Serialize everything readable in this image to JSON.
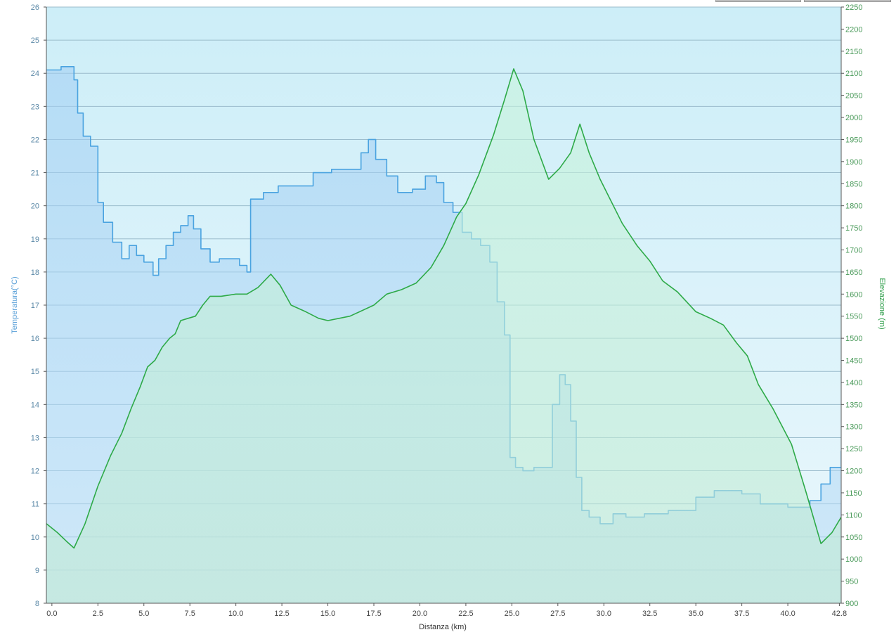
{
  "chart_data": {
    "type": "area",
    "title": "",
    "xlabel": "Distanza  (km)",
    "ylabel_left": "Temperatura(°C)",
    "ylabel_right": "Elevazione (m)",
    "xlim": [
      -0.3,
      42.9
    ],
    "ylim_left": [
      8,
      26
    ],
    "ylim_right": [
      900,
      2250
    ],
    "x_ticks": [
      "0.0",
      "2.5",
      "5.0",
      "7.5",
      "10.0",
      "12.5",
      "15.0",
      "17.5",
      "20.0",
      "22.5",
      "25.0",
      "27.5",
      "30.0",
      "32.5",
      "35.0",
      "37.5",
      "40.0",
      "42.8"
    ],
    "x_tick_values": [
      0,
      2.5,
      5,
      7.5,
      10,
      12.5,
      15,
      17.5,
      20,
      22.5,
      25,
      27.5,
      30,
      32.5,
      35,
      37.5,
      40,
      42.8
    ],
    "y_left_ticks": [
      "8",
      "9",
      "10",
      "11",
      "12",
      "13",
      "14",
      "15",
      "16",
      "17",
      "18",
      "19",
      "20",
      "21",
      "22",
      "23",
      "24",
      "25",
      "26"
    ],
    "y_right_ticks": [
      "900",
      "950",
      "1000",
      "1050",
      "1100",
      "1150",
      "1200",
      "1250",
      "1300",
      "1350",
      "1400",
      "1450",
      "1500",
      "1550",
      "1600",
      "1650",
      "1700",
      "1750",
      "1800",
      "1850",
      "1900",
      "1950",
      "2000",
      "2050",
      "2100",
      "2150",
      "2200",
      "2250"
    ],
    "grid": true,
    "colors": {
      "temperature": "#4aa3e0",
      "elevation": "#2eaa48",
      "grid": "#9bbccc",
      "bg_top": "#cdeef8",
      "bg_bottom": "#eaf7fc"
    },
    "series": [
      {
        "name": "Temperatura(°C)",
        "axis": "left",
        "style": "step",
        "x": [
          -0.3,
          0.5,
          1.2,
          1.4,
          1.7,
          2.1,
          2.5,
          2.8,
          3.3,
          3.8,
          4.2,
          4.6,
          5.0,
          5.5,
          5.8,
          6.2,
          6.6,
          7.0,
          7.4,
          7.7,
          8.1,
          8.6,
          9.1,
          9.6,
          10.2,
          10.6,
          10.8,
          11.5,
          12.3,
          13.2,
          14.2,
          15.2,
          16.2,
          16.8,
          17.2,
          17.6,
          18.2,
          18.8,
          19.6,
          20.3,
          20.9,
          21.3,
          21.8,
          22.3,
          22.8,
          23.3,
          23.8,
          24.2,
          24.6,
          24.9,
          25.2,
          25.6,
          26.2,
          27.2,
          27.6,
          27.9,
          28.2,
          28.5,
          28.8,
          29.2,
          29.8,
          30.5,
          31.2,
          32.2,
          33.5,
          35.0,
          36.0,
          37.5,
          38.5,
          40.0,
          41.2,
          41.8,
          42.3,
          42.9
        ],
        "y": [
          24.1,
          24.2,
          23.8,
          22.8,
          22.1,
          21.8,
          20.1,
          19.5,
          18.9,
          18.4,
          18.8,
          18.5,
          18.3,
          17.9,
          18.4,
          18.8,
          19.2,
          19.4,
          19.7,
          19.3,
          18.7,
          18.3,
          18.4,
          18.4,
          18.2,
          18.0,
          20.2,
          20.4,
          20.6,
          20.6,
          21.0,
          21.1,
          21.1,
          21.6,
          22.0,
          21.4,
          20.9,
          20.4,
          20.5,
          20.9,
          20.7,
          20.1,
          19.8,
          19.2,
          19.0,
          18.8,
          18.3,
          17.1,
          16.1,
          12.4,
          12.1,
          12.0,
          12.1,
          14.0,
          14.9,
          14.6,
          13.5,
          11.8,
          10.8,
          10.6,
          10.4,
          10.7,
          10.6,
          10.7,
          10.8,
          11.2,
          11.4,
          11.3,
          11.0,
          10.9,
          11.1,
          11.6,
          12.1,
          12.6
        ]
      },
      {
        "name": "Elevazione (m)",
        "axis": "right",
        "style": "line",
        "x": [
          -0.3,
          0.3,
          0.8,
          1.2,
          1.8,
          2.5,
          3.2,
          3.8,
          4.3,
          4.8,
          5.2,
          5.6,
          6.0,
          6.4,
          6.7,
          7.0,
          7.4,
          7.8,
          8.2,
          8.6,
          9.2,
          10.0,
          10.6,
          11.2,
          11.9,
          12.4,
          13.0,
          13.8,
          14.5,
          15.0,
          16.2,
          17.5,
          18.2,
          19.0,
          19.8,
          20.6,
          21.3,
          22.0,
          22.5,
          23.2,
          24.0,
          24.6,
          25.1,
          25.6,
          26.2,
          27.0,
          27.6,
          28.2,
          28.7,
          29.2,
          29.8,
          30.4,
          31.0,
          31.8,
          32.5,
          33.2,
          34.0,
          35.0,
          35.8,
          36.5,
          37.2,
          37.8,
          38.4,
          39.2,
          40.2,
          41.0,
          41.8,
          42.4,
          42.9
        ],
        "y": [
          1080,
          1060,
          1040,
          1025,
          1080,
          1165,
          1235,
          1285,
          1340,
          1390,
          1435,
          1450,
          1480,
          1500,
          1510,
          1540,
          1545,
          1550,
          1575,
          1595,
          1595,
          1600,
          1600,
          1615,
          1645,
          1620,
          1575,
          1560,
          1545,
          1540,
          1550,
          1575,
          1600,
          1610,
          1625,
          1660,
          1710,
          1775,
          1805,
          1870,
          1960,
          2040,
          2110,
          2060,
          1950,
          1860,
          1885,
          1920,
          1985,
          1920,
          1860,
          1810,
          1760,
          1710,
          1675,
          1630,
          1605,
          1560,
          1545,
          1530,
          1490,
          1460,
          1395,
          1340,
          1260,
          1150,
          1035,
          1060,
          1095
        ]
      }
    ]
  }
}
